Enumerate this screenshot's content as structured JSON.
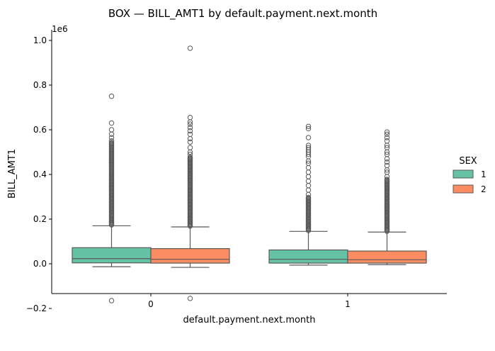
{
  "chart_data": {
    "type": "box",
    "title": "BOX — BILL_AMT1 by default.payment.next.month",
    "xlabel": "default.payment.next.month",
    "ylabel": "BILL_AMT1",
    "y_offset_label": "1e6",
    "categories": [
      "0",
      "1"
    ],
    "ylim": [
      -0.22,
      1.05
    ],
    "yticks": [
      {
        "value": -0.2,
        "label": "−0.2"
      },
      {
        "value": 0.0,
        "label": "0.0"
      },
      {
        "value": 0.2,
        "label": "0.2"
      },
      {
        "value": 0.4,
        "label": "0.4"
      },
      {
        "value": 0.6,
        "label": "0.6"
      },
      {
        "value": 0.8,
        "label": "0.8"
      },
      {
        "value": 1.0,
        "label": "1.0"
      }
    ],
    "legend": {
      "title": "SEX",
      "placement": "right",
      "entries": [
        {
          "label": "1",
          "color": "#66c2a5"
        },
        {
          "label": "2",
          "color": "#fc8d62"
        }
      ]
    },
    "series": [
      {
        "name": "1",
        "color": "#66c2a5",
        "boxes": [
          {
            "category": "0",
            "whisker_low": -0.013,
            "q1": 0.004,
            "median": 0.023,
            "q3": 0.072,
            "whisker_high": 0.17,
            "outlier_range": [
              0.17,
              0.545
            ],
            "outliers": [
              0.55,
              0.565,
              0.58,
              0.6,
              0.63,
              0.75,
              -0.165
            ]
          },
          {
            "category": "1",
            "whisker_low": -0.006,
            "q1": 0.003,
            "median": 0.02,
            "q3": 0.062,
            "whisker_high": 0.145,
            "outlier_range": [
              0.145,
              0.3
            ],
            "outliers": [
              0.31,
              0.33,
              0.35,
              0.37,
              0.39,
              0.41,
              0.43,
              0.45,
              0.46,
              0.48,
              0.49,
              0.5,
              0.51,
              0.52,
              0.53,
              0.565,
              0.605,
              0.615
            ]
          }
        ]
      },
      {
        "name": "2",
        "color": "#fc8d62",
        "boxes": [
          {
            "category": "0",
            "whisker_low": -0.016,
            "q1": 0.003,
            "median": 0.02,
            "q3": 0.068,
            "whisker_high": 0.165,
            "outlier_range": [
              0.165,
              0.48
            ],
            "outliers": [
              0.49,
              0.5,
              0.52,
              0.545,
              0.56,
              0.58,
              0.595,
              0.61,
              0.625,
              0.635,
              0.655,
              0.965,
              -0.155
            ]
          },
          {
            "category": "1",
            "whisker_low": -0.004,
            "q1": 0.003,
            "median": 0.018,
            "q3": 0.057,
            "whisker_high": 0.142,
            "outlier_range": [
              0.142,
              0.38
            ],
            "outliers": [
              0.39,
              0.41,
              0.42,
              0.44,
              0.455,
              0.47,
              0.49,
              0.5,
              0.52,
              0.53,
              0.55,
              0.565,
              0.58,
              0.59
            ]
          }
        ]
      }
    ]
  }
}
